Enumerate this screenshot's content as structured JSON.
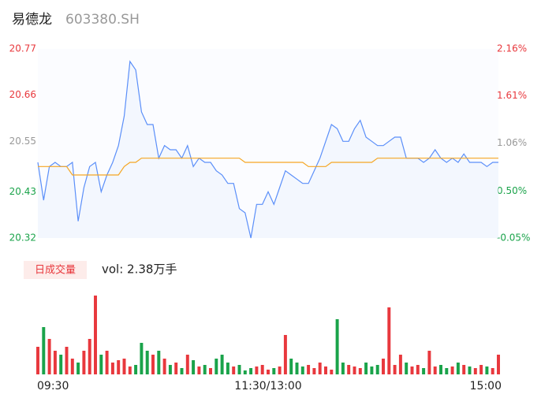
{
  "header": {
    "name": "易德龙",
    "code": "603380.SH"
  },
  "chart_data": [
    {
      "type": "line",
      "x": [
        0,
        3,
        6,
        9,
        12,
        15,
        18,
        21,
        24,
        27,
        30,
        33,
        36,
        39,
        42,
        45,
        48,
        51,
        54,
        57,
        60,
        63,
        66,
        69,
        72,
        75,
        78,
        81,
        84,
        87,
        90,
        93,
        96,
        99,
        102,
        105,
        108,
        111,
        114,
        117,
        120,
        123,
        126,
        129,
        132,
        135,
        138,
        141,
        144,
        147,
        150,
        153,
        156,
        159,
        162,
        165,
        168,
        171,
        174,
        177,
        180,
        183,
        186,
        189,
        192,
        195,
        198,
        201,
        204,
        207,
        210,
        213,
        216,
        219,
        222,
        225,
        228,
        231,
        234,
        237,
        240
      ],
      "xlim": [
        0,
        240
      ],
      "series": [
        {
          "color": "#5b8ff9",
          "values": [
            20.5,
            20.41,
            20.49,
            20.5,
            20.49,
            20.49,
            20.5,
            20.36,
            20.44,
            20.49,
            20.5,
            20.43,
            20.47,
            20.5,
            20.54,
            20.61,
            20.74,
            20.72,
            20.62,
            20.59,
            20.59,
            20.51,
            20.54,
            20.53,
            20.53,
            20.51,
            20.54,
            20.49,
            20.51,
            20.5,
            20.5,
            20.48,
            20.47,
            20.45,
            20.45,
            20.39,
            20.38,
            20.32,
            20.4,
            20.4,
            20.43,
            20.4,
            20.44,
            20.48,
            20.47,
            20.46,
            20.45,
            20.45,
            20.48,
            20.51,
            20.55,
            20.59,
            20.58,
            20.55,
            20.55,
            20.58,
            20.6,
            20.56,
            20.55,
            20.54,
            20.54,
            20.55,
            20.56,
            20.56,
            20.51,
            20.51,
            20.51,
            20.5,
            20.51,
            20.53,
            20.51,
            20.5,
            20.51,
            20.5,
            20.52,
            20.5,
            20.5,
            20.5,
            20.49,
            20.5,
            20.5
          ]
        },
        {
          "color": "#f5a623",
          "values": [
            20.49,
            20.49,
            20.49,
            20.49,
            20.49,
            20.49,
            20.47,
            20.47,
            20.47,
            20.47,
            20.47,
            20.47,
            20.47,
            20.47,
            20.47,
            20.49,
            20.5,
            20.5,
            20.51,
            20.51,
            20.51,
            20.51,
            20.51,
            20.51,
            20.51,
            20.51,
            20.51,
            20.51,
            20.51,
            20.51,
            20.51,
            20.51,
            20.51,
            20.51,
            20.51,
            20.51,
            20.5,
            20.5,
            20.5,
            20.5,
            20.5,
            20.5,
            20.5,
            20.5,
            20.5,
            20.5,
            20.5,
            20.49,
            20.49,
            20.49,
            20.49,
            20.5,
            20.5,
            20.5,
            20.5,
            20.5,
            20.5,
            20.5,
            20.5,
            20.51,
            20.51,
            20.51,
            20.51,
            20.51,
            20.51,
            20.51,
            20.51,
            20.51,
            20.51,
            20.51,
            20.51,
            20.51,
            20.51,
            20.51,
            20.51,
            20.51,
            20.51,
            20.51,
            20.51,
            20.51,
            20.51
          ]
        }
      ],
      "ylim": [
        20.32,
        20.77
      ],
      "yticks": [
        20.77,
        20.66,
        20.55,
        20.43,
        20.32
      ],
      "y2lim": [
        -0.05,
        2.16
      ],
      "y2ticks": [
        {
          "value": 2.16,
          "label": "2.16%"
        },
        {
          "value": 1.61,
          "label": "1.61%"
        },
        {
          "value": 1.06,
          "label": "1.06%"
        },
        {
          "value": 0.5,
          "label": "0.50%"
        },
        {
          "value": -0.05,
          "label": "-0.05%"
        }
      ]
    },
    {
      "type": "bar",
      "label": "日成交量",
      "summary": "vol: 2.38万手",
      "x": [
        0,
        3,
        6,
        9,
        12,
        15,
        18,
        21,
        24,
        27,
        30,
        33,
        36,
        39,
        42,
        45,
        48,
        51,
        54,
        57,
        60,
        63,
        66,
        69,
        72,
        75,
        78,
        81,
        84,
        87,
        90,
        93,
        96,
        99,
        102,
        105,
        108,
        111,
        114,
        117,
        120,
        123,
        126,
        129,
        132,
        135,
        138,
        141,
        144,
        147,
        150,
        153,
        156,
        159,
        162,
        165,
        168,
        171,
        174,
        177,
        180,
        183,
        186,
        189,
        192,
        195,
        198,
        201,
        204,
        207,
        210,
        213,
        216,
        219,
        222,
        225,
        228,
        231,
        234,
        237,
        240
      ],
      "xlim": [
        0,
        240
      ],
      "values": [
        35,
        60,
        45,
        30,
        25,
        35,
        20,
        15,
        30,
        45,
        100,
        25,
        30,
        15,
        18,
        20,
        10,
        12,
        40,
        30,
        25,
        30,
        20,
        12,
        15,
        8,
        25,
        18,
        10,
        12,
        8,
        20,
        25,
        15,
        10,
        12,
        5,
        8,
        10,
        12,
        6,
        8,
        10,
        50,
        20,
        15,
        10,
        12,
        8,
        15,
        10,
        6,
        70,
        15,
        12,
        10,
        8,
        15,
        10,
        12,
        20,
        85,
        12,
        25,
        15,
        10,
        12,
        8,
        30,
        10,
        12,
        8,
        10,
        15,
        12,
        10,
        8,
        12,
        10,
        8,
        25
      ],
      "ylim": [
        0,
        100
      ],
      "up_color": "#e8383d",
      "down_color": "#1aa34a",
      "xticks": [
        {
          "value": 0,
          "label": "09:30"
        },
        {
          "value": 120,
          "label": "11:30/13:00"
        },
        {
          "value": 240,
          "label": "15:00"
        }
      ]
    }
  ]
}
